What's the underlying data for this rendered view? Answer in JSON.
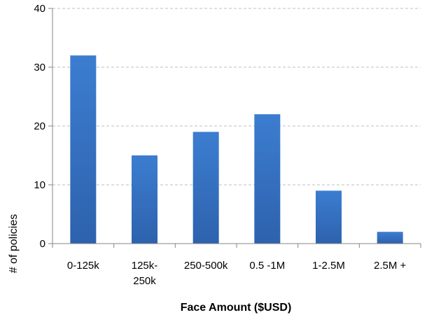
{
  "chart_data": {
    "type": "bar",
    "title": "",
    "xlabel": "Face Amount ($USD)",
    "ylabel": "# of policies",
    "categories": [
      "0-125k",
      "125k-250k",
      "250-500k",
      "0.5 -1M",
      "1-2.5M",
      "2.5M +"
    ],
    "category_lines": [
      [
        "0-125k"
      ],
      [
        "125k-",
        "250k"
      ],
      [
        "250-500k"
      ],
      [
        "0.5 -1M"
      ],
      [
        "1-2.5M"
      ],
      [
        "2.5M +"
      ]
    ],
    "values": [
      32,
      15,
      19,
      22,
      9,
      2
    ],
    "ylim": [
      0,
      40
    ],
    "yticks": [
      0,
      10,
      20,
      30,
      40
    ],
    "grid": true,
    "bar_color": "#3A75C4",
    "grid_color": "#BFBFBF",
    "axis_color": "#868686"
  }
}
